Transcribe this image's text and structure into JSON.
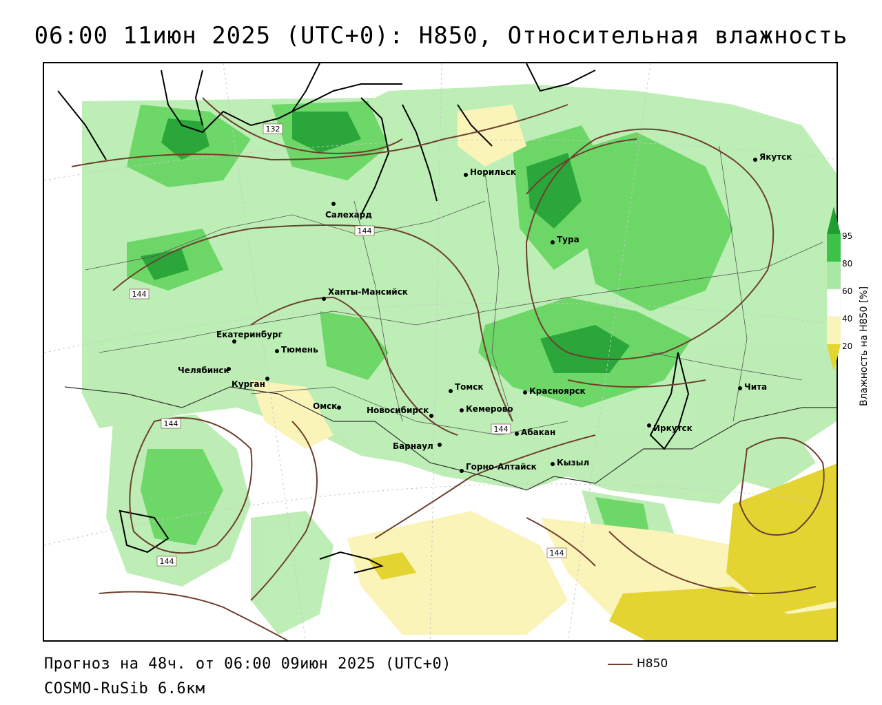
{
  "header": {
    "title": "06:00 11июн 2025 (UTC+0): H850, Относительная влажность"
  },
  "footer": {
    "forecast": "Прогноз на 48ч. от 06:00 09июн 2025 (UTC+0)",
    "model": "COSMO-RuSib 6.6км",
    "legend_line_label": "H850"
  },
  "colorbar": {
    "title": "Влажность на H850 [%]",
    "ticks": [
      "95",
      "80",
      "60",
      "40",
      "20"
    ],
    "colors": {
      "above_95": "#1f9e32",
      "80_95": "#3cc24a",
      "60_80": "#a9e8a3",
      "40_60": "#ffffff",
      "20_40": "#fbf4b8",
      "below_20": "#e3d432"
    }
  },
  "contour_labels": [
    "132",
    "144",
    "144",
    "144",
    "144",
    "144",
    "144"
  ],
  "cities": [
    {
      "name": "Норильск"
    },
    {
      "name": "Якутск"
    },
    {
      "name": "Салехард"
    },
    {
      "name": "Тура"
    },
    {
      "name": "Ханты-Мансийск"
    },
    {
      "name": "Екатеринбург"
    },
    {
      "name": "Тюмень"
    },
    {
      "name": "Челябинск"
    },
    {
      "name": "Курган"
    },
    {
      "name": "Омск"
    },
    {
      "name": "Новосибирск"
    },
    {
      "name": "Томск"
    },
    {
      "name": "Кемерово"
    },
    {
      "name": "Красноярск"
    },
    {
      "name": "Барнаул"
    },
    {
      "name": "Абакан"
    },
    {
      "name": "Горно-Алтайск"
    },
    {
      "name": "Кызыл"
    },
    {
      "name": "Иркутск"
    },
    {
      "name": "Чита"
    }
  ]
}
